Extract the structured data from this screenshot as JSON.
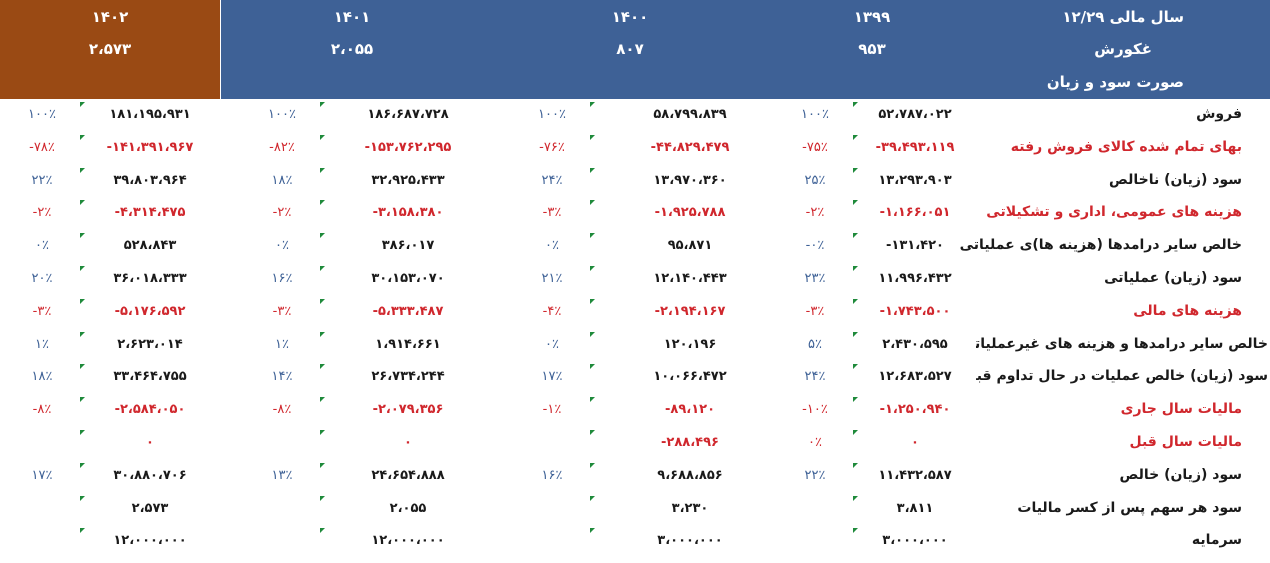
{
  "header": {
    "year_label": "سال مالی ۱۲/۲۹",
    "years": [
      "۱۳۹۹",
      "۱۴۰۰",
      "۱۴۰۱",
      "۱۴۰۲"
    ],
    "company": "غکورش",
    "prices": [
      "۹۵۳",
      "۸۰۷",
      "۲،۰۵۵",
      "۲،۵۷۳"
    ],
    "statement": "صورت سود و زیان"
  },
  "rows": [
    {
      "label": "فروش",
      "red": false,
      "v1399": "۵۲،۷۸۷،۰۲۲",
      "p1399": "۱۰۰٪",
      "v1400": "۵۸،۷۹۹،۸۳۹",
      "p1400": "۱۰۰٪",
      "v1401": "۱۸۶،۶۸۷،۷۲۸",
      "p1401": "۱۰۰٪",
      "v1402": "۱۸۱،۱۹۵،۹۳۱",
      "p1402": "۱۰۰٪"
    },
    {
      "label": "بهای تمام شده کالای فروش رفته",
      "red": true,
      "v1399": "-۳۹،۴۹۳،۱۱۹",
      "p1399": "-۷۵٪",
      "v1400": "-۴۴،۸۲۹،۴۷۹",
      "p1400": "-۷۶٪",
      "v1401": "-۱۵۳،۷۶۲،۲۹۵",
      "p1401": "-۸۲٪",
      "v1402": "-۱۴۱،۳۹۱،۹۶۷",
      "p1402": "-۷۸٪"
    },
    {
      "label": "سود (زیان) ناخالص",
      "red": false,
      "v1399": "۱۳،۲۹۳،۹۰۳",
      "p1399": "۲۵٪",
      "v1400": "۱۳،۹۷۰،۳۶۰",
      "p1400": "۲۴٪",
      "v1401": "۳۲،۹۲۵،۴۳۳",
      "p1401": "۱۸٪",
      "v1402": "۳۹،۸۰۳،۹۶۴",
      "p1402": "۲۲٪"
    },
    {
      "label": "هزینه های عمومی، اداری و تشکیلاتی",
      "red": true,
      "v1399": "-۱،۱۶۶،۰۵۱",
      "p1399": "-۲٪",
      "v1400": "-۱،۹۲۵،۷۸۸",
      "p1400": "-۳٪",
      "v1401": "-۳،۱۵۸،۳۸۰",
      "p1401": "-۲٪",
      "v1402": "-۴،۳۱۴،۴۷۵",
      "p1402": "-۲٪"
    },
    {
      "label": "خالص سایر درامدها (هزینه ها)ی عملیاتی",
      "red": false,
      "v1399": "-۱۳۱،۴۲۰",
      "p1399": "-۰٪",
      "v1400": "۹۵،۸۷۱",
      "p1400": "۰٪",
      "v1401": "۳۸۶،۰۱۷",
      "p1401": "۰٪",
      "v1402": "۵۲۸،۸۴۳",
      "p1402": "۰٪"
    },
    {
      "label": "سود (زیان) عملیاتی",
      "red": false,
      "v1399": "۱۱،۹۹۶،۴۳۲",
      "p1399": "۲۳٪",
      "v1400": "۱۲،۱۴۰،۴۴۳",
      "p1400": "۲۱٪",
      "v1401": "۳۰،۱۵۳،۰۷۰",
      "p1401": "۱۶٪",
      "v1402": "۳۶،۰۱۸،۳۳۳",
      "p1402": "۲۰٪"
    },
    {
      "label": "هزینه های مالی",
      "red": true,
      "v1399": "-۱،۷۴۳،۵۰۰",
      "p1399": "-۳٪",
      "v1400": "-۲،۱۹۴،۱۶۷",
      "p1400": "-۴٪",
      "v1401": "-۵،۳۳۳،۴۸۷",
      "p1401": "-۳٪",
      "v1402": "-۵،۱۷۶،۵۹۲",
      "p1402": "-۳٪"
    },
    {
      "label": "خالص سایر درامدها و هزینه های غیرعملیاتی",
      "red": false,
      "v1399": "۲،۴۳۰،۵۹۵",
      "p1399": "۵٪",
      "v1400": "۱۲۰،۱۹۶",
      "p1400": "۰٪",
      "v1401": "۱،۹۱۴،۶۶۱",
      "p1401": "۱٪",
      "v1402": "۲،۶۲۳،۰۱۴",
      "p1402": "۱٪"
    },
    {
      "label": "سود (زیان) خالص عملیات در حال تداوم قبل از مالیات",
      "red": false,
      "v1399": "۱۲،۶۸۳،۵۲۷",
      "p1399": "۲۴٪",
      "v1400": "۱۰،۰۶۶،۴۷۲",
      "p1400": "۱۷٪",
      "v1401": "۲۶،۷۳۴،۲۴۴",
      "p1401": "۱۴٪",
      "v1402": "۳۳،۴۶۴،۷۵۵",
      "p1402": "۱۸٪"
    },
    {
      "label": "مالیات سال جاری",
      "red": true,
      "v1399": "-۱،۲۵۰،۹۴۰",
      "p1399": "-۱۰٪",
      "v1400": "-۸۹،۱۲۰",
      "p1400": "-۱٪",
      "v1401": "-۲،۰۷۹،۳۵۶",
      "p1401": "-۸٪",
      "v1402": "-۲،۵۸۴،۰۵۰",
      "p1402": "-۸٪"
    },
    {
      "label": "مالیات سال قبل",
      "red": true,
      "v1399": "۰",
      "p1399": "۰٪",
      "v1400": "-۲۸۸،۴۹۶",
      "p1400": "",
      "v1401": "۰",
      "p1401": "",
      "v1402": "۰",
      "p1402": ""
    },
    {
      "label": "سود (زیان) خالص",
      "red": false,
      "v1399": "۱۱،۴۳۲،۵۸۷",
      "p1399": "۲۲٪",
      "v1400": "۹،۶۸۸،۸۵۶",
      "p1400": "۱۶٪",
      "v1401": "۲۴،۶۵۴،۸۸۸",
      "p1401": "۱۳٪",
      "v1402": "۳۰،۸۸۰،۷۰۶",
      "p1402": "۱۷٪"
    },
    {
      "label": "سود هر سهم پس از کسر مالیات",
      "red": false,
      "v1399": "۳،۸۱۱",
      "p1399": "",
      "v1400": "۳،۲۳۰",
      "p1400": "",
      "v1401": "۲،۰۵۵",
      "p1401": "",
      "v1402": "۲،۵۷۳",
      "p1402": ""
    },
    {
      "label": "سرمایه",
      "red": false,
      "v1399": "۳،۰۰۰،۰۰۰",
      "p1399": "",
      "v1400": "۳،۰۰۰،۰۰۰",
      "p1400": "",
      "v1401": "۱۲،۰۰۰،۰۰۰",
      "p1401": "",
      "v1402": "۱۲،۰۰۰،۰۰۰",
      "p1402": ""
    }
  ]
}
